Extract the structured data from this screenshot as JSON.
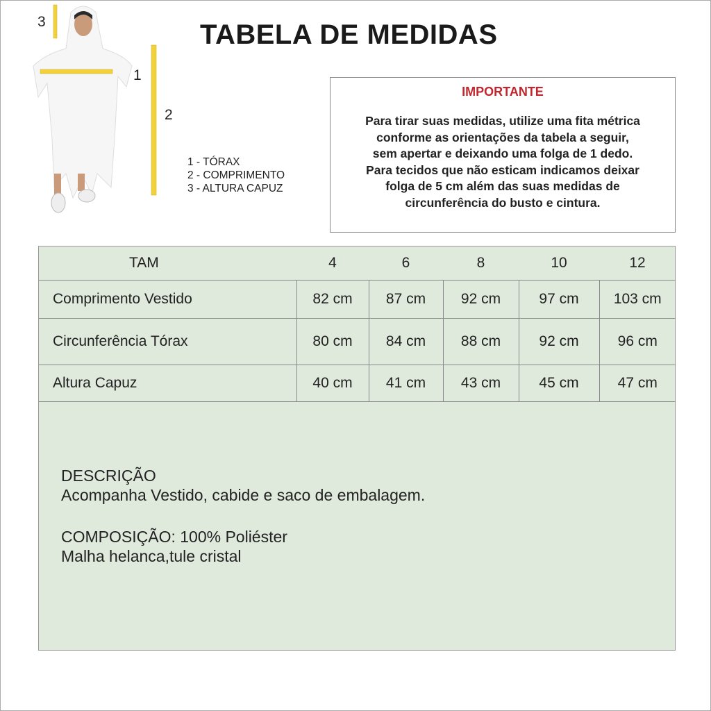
{
  "title": "TABELA DE MEDIDAS",
  "figure": {
    "markers": [
      "1",
      "2",
      "3"
    ],
    "ruler_color": "#f2d23a",
    "legend": [
      "1 - TÓRAX",
      "2 - COMPRIMENTO",
      "3 - ALTURA CAPUZ"
    ]
  },
  "important": {
    "heading": "IMPORTANTE",
    "heading_color": "#c0262d",
    "lines": [
      "Para tirar suas medidas, utilize uma fita métrica",
      "conforme as orientações da tabela a  seguir,",
      "sem apertar e deixando uma folga de 1 dedo.",
      "Para tecidos que não esticam indicamos deixar",
      "folga de 5 cm além das suas medidas de",
      "circunferência do busto e cintura."
    ]
  },
  "table": {
    "header": [
      "TAM",
      "4",
      "6",
      "8",
      "10",
      "12"
    ],
    "rows": [
      {
        "label": "Comprimento Vestido",
        "values": [
          "82  cm",
          "87 cm",
          "92 cm",
          "97 cm",
          "103 cm"
        ]
      },
      {
        "label": "Circunferência Tórax",
        "values": [
          "80 cm",
          "84 cm",
          "88 cm",
          "92 cm",
          "96 cm"
        ]
      },
      {
        "label": "Altura Capuz",
        "values": [
          "40 cm",
          "41 cm",
          "43 cm",
          "45 cm",
          "47 cm"
        ]
      }
    ],
    "background": "#dfe9dc"
  },
  "description": {
    "heading": "DESCRIÇÃO",
    "text": "Acompanha Vestido, cabide e saco de embalagem.",
    "composition": "COMPOSIÇÃO: 100% Poliéster",
    "material": "Malha helanca,tule cristal"
  }
}
